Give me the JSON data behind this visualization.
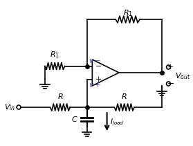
{
  "bg_color": "#ffffff",
  "line_color": "#000000",
  "label_color_blue": "#4444cc",
  "label_color_black": "#000000",
  "figsize": [
    2.79,
    2.11
  ],
  "dpi": 100
}
